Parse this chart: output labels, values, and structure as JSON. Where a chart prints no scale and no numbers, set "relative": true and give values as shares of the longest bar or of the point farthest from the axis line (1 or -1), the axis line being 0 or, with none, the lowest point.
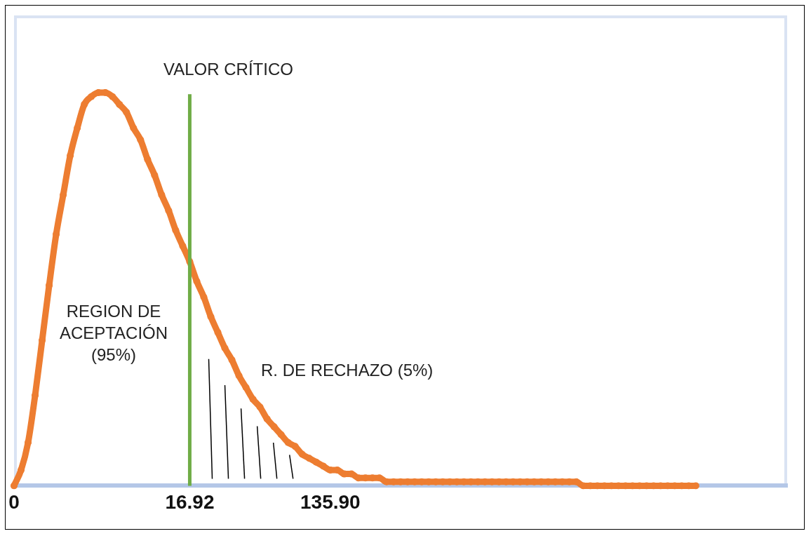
{
  "chart_data": {
    "type": "line",
    "relative": true,
    "marker": "circle",
    "categories": [
      "0",
      null,
      null,
      null,
      null,
      null,
      null,
      null,
      null,
      null,
      null,
      null,
      null,
      null,
      null,
      null,
      null,
      null,
      null,
      null,
      null,
      null,
      null,
      null,
      null,
      "16.92",
      null,
      null,
      null,
      null,
      null,
      null,
      null,
      null,
      null,
      null,
      null,
      null,
      null,
      null,
      null,
      null,
      null,
      null,
      null,
      "135.90",
      null,
      null,
      null,
      null,
      null,
      null,
      null,
      null,
      null,
      null,
      null,
      null,
      null,
      null,
      null,
      null,
      null,
      null,
      null,
      null,
      null,
      null,
      null,
      null,
      null,
      null,
      null,
      null,
      null,
      null,
      null,
      null,
      null,
      null,
      null,
      null,
      null,
      null,
      null,
      null,
      null,
      null,
      null,
      null,
      null,
      null,
      null,
      null,
      null,
      null,
      null,
      null,
      null,
      null,
      null,
      null,
      null,
      null,
      null,
      null,
      null,
      null,
      null,
      null,
      null
    ],
    "series": [
      {
        "color": "#ed7d31",
        "values": [
          0,
          0.04,
          0.11,
          0.23,
          0.37,
          0.51,
          0.64,
          0.74,
          0.84,
          0.91,
          0.97,
          0.99,
          1,
          1,
          0.99,
          0.97,
          0.95,
          0.91,
          0.88,
          0.83,
          0.79,
          0.74,
          0.7,
          0.65,
          0.61,
          0.57,
          0.52,
          0.48,
          0.43,
          0.39,
          0.35,
          0.32,
          0.28,
          0.25,
          0.22,
          0.2,
          0.17,
          0.15,
          0.13,
          0.11,
          0.1,
          0.08,
          0.07,
          0.06,
          0.05,
          0.04,
          0.04,
          0.03,
          0.03,
          0.02,
          0.02,
          0.02,
          0.02,
          0.01,
          0.01,
          0.01,
          0.01,
          0.01,
          0.01,
          0.01,
          0.01,
          0.01,
          0.01,
          0.01,
          0.01,
          0.01,
          0.01,
          0.01,
          0.01,
          0.01,
          0.01,
          0.01,
          0.01,
          0.01,
          0.01,
          0.01,
          0.01,
          0.01,
          0.01,
          0.01,
          0.01,
          0,
          0,
          0,
          0,
          0,
          0,
          0,
          0,
          0,
          0,
          0,
          0,
          0,
          0,
          0,
          0,
          0,
          null,
          null,
          null,
          null,
          null,
          null,
          null,
          null,
          null,
          null,
          null,
          null,
          null
        ]
      }
    ],
    "ref_lines": [
      {
        "axis": "x",
        "value": "16.92",
        "label": "VALOR CRÍTICO",
        "color": "#70ad47"
      }
    ],
    "annotations": [
      "REGION DE ACEPTACIÓN (95%)",
      "R. DE RECHAZO (5%)"
    ],
    "legend": false,
    "grid": false
  }
}
